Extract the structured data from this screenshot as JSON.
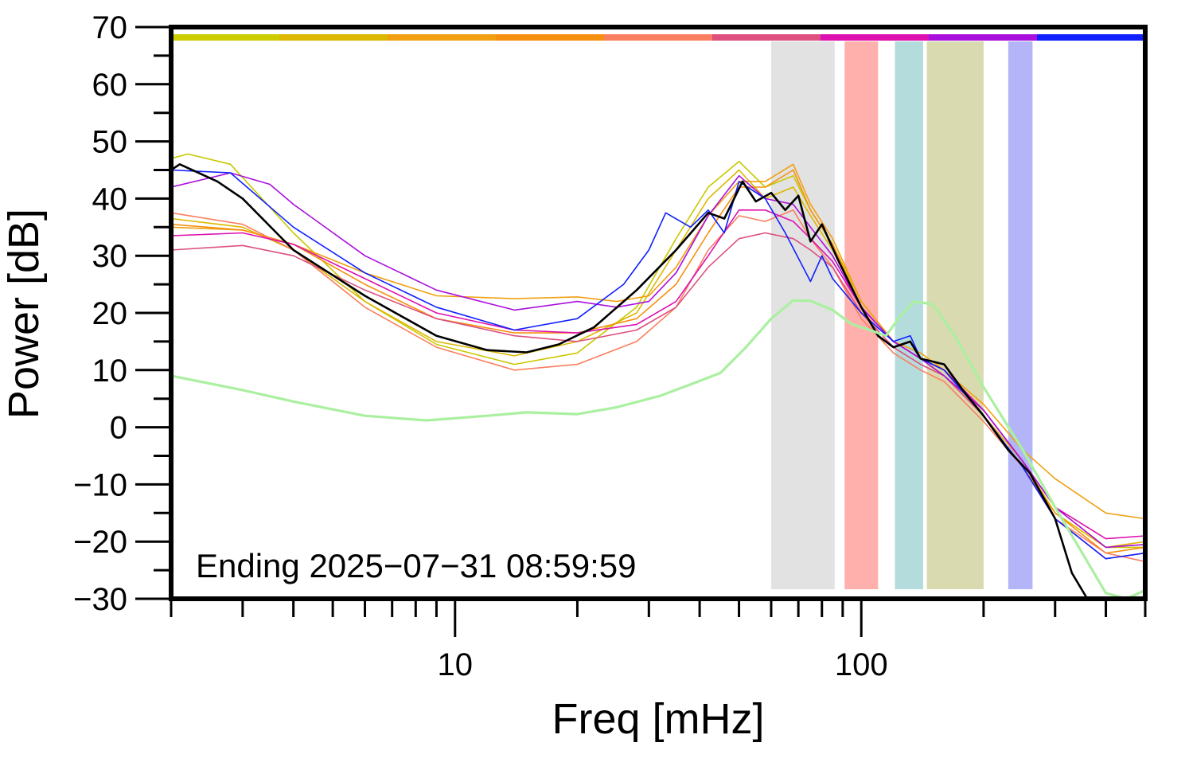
{
  "chart_data": {
    "type": "line",
    "xlabel": "Freq [mHz]",
    "ylabel": "Power [dB]",
    "xscale": "log",
    "xlim": [
      2,
      500
    ],
    "ylim": [
      -30,
      70
    ],
    "yticks": [
      70,
      60,
      50,
      40,
      30,
      20,
      10,
      0,
      -10,
      -20,
      -30
    ],
    "ytick_labels": [
      "70",
      "60",
      "50",
      "40",
      "30",
      "20",
      "10",
      "0",
      "−10",
      "−20",
      "−30"
    ],
    "xticks": [
      10,
      100
    ],
    "xtick_labels": [
      "10",
      "100"
    ],
    "annotation": "Ending 2025−07−31 08:59:59",
    "grid": false,
    "top_color_bar": [
      "#cccc00",
      "#ddb800",
      "#f0a010",
      "#f59010",
      "#fa7f60",
      "#dd5080",
      "#dd10b0",
      "#aa10dd",
      "#1020ff"
    ],
    "bands": [
      {
        "x0": 60,
        "x1": 86,
        "color": "#e2e2e2"
      },
      {
        "x0": 91,
        "x1": 110,
        "color": "#ffb0ac"
      },
      {
        "x0": 121,
        "x1": 142,
        "color": "#b4dcdc"
      },
      {
        "x0": 145,
        "x1": 200,
        "color": "#dadab0"
      },
      {
        "x0": 230,
        "x1": 264,
        "color": "#b4b4f8"
      }
    ],
    "series": [
      {
        "color": "#c8c800",
        "width": 1.6,
        "points": [
          [
            2,
            47
          ],
          [
            2.2,
            47.8
          ],
          [
            2.8,
            46
          ],
          [
            4,
            34
          ],
          [
            6,
            22
          ],
          [
            9,
            14.5
          ],
          [
            14,
            11
          ],
          [
            20,
            13
          ],
          [
            28,
            21
          ],
          [
            35,
            33
          ],
          [
            42,
            42
          ],
          [
            50,
            46.5
          ],
          [
            58,
            42
          ],
          [
            68,
            44
          ],
          [
            75,
            38
          ],
          [
            85,
            32
          ],
          [
            100,
            22
          ],
          [
            120,
            15
          ],
          [
            140,
            12
          ],
          [
            160,
            10
          ],
          [
            200,
            3
          ],
          [
            250,
            -6
          ],
          [
            300,
            -14
          ],
          [
            400,
            -21
          ],
          [
            500,
            -21
          ]
        ]
      },
      {
        "color": "#ddb800",
        "width": 1.6,
        "points": [
          [
            2,
            36.5
          ],
          [
            3,
            35
          ],
          [
            4,
            31
          ],
          [
            6,
            22
          ],
          [
            9,
            15
          ],
          [
            14,
            12.5
          ],
          [
            20,
            15
          ],
          [
            28,
            20
          ],
          [
            35,
            31
          ],
          [
            42,
            40
          ],
          [
            50,
            45
          ],
          [
            58,
            40
          ],
          [
            68,
            42
          ],
          [
            75,
            37
          ],
          [
            85,
            31
          ],
          [
            100,
            21
          ],
          [
            120,
            15
          ],
          [
            140,
            12
          ],
          [
            160,
            10
          ],
          [
            200,
            2
          ],
          [
            250,
            -6
          ],
          [
            300,
            -15
          ],
          [
            400,
            -21
          ],
          [
            500,
            -20
          ]
        ]
      },
      {
        "color": "#f0a010",
        "width": 1.6,
        "points": [
          [
            2,
            35
          ],
          [
            3,
            34.5
          ],
          [
            4,
            32
          ],
          [
            6,
            27
          ],
          [
            9,
            23
          ],
          [
            14,
            22.5
          ],
          [
            20,
            22.8
          ],
          [
            25,
            22
          ],
          [
            30,
            23
          ],
          [
            35,
            28
          ],
          [
            42,
            37
          ],
          [
            50,
            43
          ],
          [
            58,
            43
          ],
          [
            68,
            46
          ],
          [
            75,
            39
          ],
          [
            85,
            33
          ],
          [
            100,
            22
          ],
          [
            120,
            15
          ],
          [
            140,
            13
          ],
          [
            160,
            10
          ],
          [
            200,
            4
          ],
          [
            250,
            -4
          ],
          [
            300,
            -9
          ],
          [
            400,
            -15
          ],
          [
            500,
            -16
          ]
        ]
      },
      {
        "color": "#f59010",
        "width": 1.6,
        "points": [
          [
            2,
            35.5
          ],
          [
            3,
            34.5
          ],
          [
            4,
            32
          ],
          [
            6,
            25
          ],
          [
            9,
            19
          ],
          [
            14,
            16.5
          ],
          [
            20,
            16.5
          ],
          [
            28,
            19
          ],
          [
            35,
            25
          ],
          [
            42,
            34
          ],
          [
            50,
            42
          ],
          [
            58,
            42
          ],
          [
            68,
            45
          ],
          [
            75,
            38
          ],
          [
            85,
            32
          ],
          [
            100,
            21
          ],
          [
            120,
            15
          ],
          [
            140,
            12
          ],
          [
            160,
            9
          ],
          [
            200,
            2
          ],
          [
            250,
            -7
          ],
          [
            300,
            -15
          ],
          [
            400,
            -22
          ],
          [
            500,
            -21
          ]
        ]
      },
      {
        "color": "#fa7f60",
        "width": 1.6,
        "points": [
          [
            2,
            37.5
          ],
          [
            3,
            35.5
          ],
          [
            4,
            31
          ],
          [
            6,
            21
          ],
          [
            9,
            14
          ],
          [
            14,
            10
          ],
          [
            20,
            11
          ],
          [
            28,
            15
          ],
          [
            35,
            21
          ],
          [
            42,
            31
          ],
          [
            50,
            37
          ],
          [
            58,
            36
          ],
          [
            68,
            38
          ],
          [
            75,
            33
          ],
          [
            85,
            28
          ],
          [
            100,
            19
          ],
          [
            120,
            13
          ],
          [
            140,
            10
          ],
          [
            160,
            8
          ],
          [
            200,
            1
          ],
          [
            250,
            -7
          ],
          [
            300,
            -16
          ],
          [
            400,
            -22
          ],
          [
            500,
            -23.5
          ]
        ]
      },
      {
        "color": "#dd5080",
        "width": 1.6,
        "points": [
          [
            2,
            31
          ],
          [
            3,
            31.8
          ],
          [
            4,
            30
          ],
          [
            6,
            24
          ],
          [
            9,
            19
          ],
          [
            14,
            16
          ],
          [
            20,
            15
          ],
          [
            28,
            17
          ],
          [
            35,
            21
          ],
          [
            42,
            28
          ],
          [
            50,
            33
          ],
          [
            58,
            34
          ],
          [
            68,
            33
          ],
          [
            75,
            31
          ],
          [
            85,
            28
          ],
          [
            100,
            20
          ],
          [
            120,
            14
          ],
          [
            140,
            11
          ],
          [
            160,
            9
          ],
          [
            200,
            2
          ],
          [
            250,
            -7
          ],
          [
            300,
            -16
          ],
          [
            400,
            -23
          ],
          [
            500,
            -22
          ]
        ]
      },
      {
        "color": "#dd10b0",
        "width": 1.6,
        "points": [
          [
            2,
            33.5
          ],
          [
            3,
            34
          ],
          [
            4,
            32
          ],
          [
            6,
            26
          ],
          [
            9,
            20
          ],
          [
            14,
            17
          ],
          [
            20,
            16.5
          ],
          [
            28,
            18
          ],
          [
            35,
            22
          ],
          [
            42,
            30
          ],
          [
            50,
            38
          ],
          [
            58,
            38
          ],
          [
            68,
            36
          ],
          [
            75,
            33
          ],
          [
            85,
            29
          ],
          [
            100,
            21
          ],
          [
            120,
            15
          ],
          [
            140,
            12
          ],
          [
            160,
            10
          ],
          [
            200,
            3
          ],
          [
            250,
            -6
          ],
          [
            300,
            -14
          ],
          [
            400,
            -19.5
          ],
          [
            500,
            -19
          ]
        ]
      },
      {
        "color": "#aa10dd",
        "width": 1.6,
        "points": [
          [
            2,
            42
          ],
          [
            2.8,
            44.5
          ],
          [
            3.5,
            42.5
          ],
          [
            4,
            39
          ],
          [
            6,
            30
          ],
          [
            9,
            24
          ],
          [
            14,
            20.5
          ],
          [
            20,
            22
          ],
          [
            25,
            21
          ],
          [
            30,
            22
          ],
          [
            35,
            27
          ],
          [
            42,
            37
          ],
          [
            50,
            44
          ],
          [
            58,
            40
          ],
          [
            68,
            39
          ],
          [
            75,
            35
          ],
          [
            85,
            30
          ],
          [
            100,
            21
          ],
          [
            120,
            15
          ],
          [
            140,
            12
          ],
          [
            160,
            9
          ],
          [
            200,
            3
          ],
          [
            250,
            -6
          ],
          [
            300,
            -14
          ],
          [
            400,
            -21
          ],
          [
            500,
            -20.5
          ]
        ]
      },
      {
        "color": "#1020ff",
        "width": 1.6,
        "points": [
          [
            2,
            45
          ],
          [
            2.8,
            44.5
          ],
          [
            4,
            35
          ],
          [
            6,
            27
          ],
          [
            9,
            21
          ],
          [
            14,
            17
          ],
          [
            20,
            19
          ],
          [
            26,
            25
          ],
          [
            30,
            31
          ],
          [
            33,
            37.5
          ],
          [
            38,
            35
          ],
          [
            42,
            38
          ],
          [
            46,
            34
          ],
          [
            50,
            43
          ],
          [
            58,
            40
          ],
          [
            65,
            34
          ],
          [
            75,
            25.5
          ],
          [
            80,
            30
          ],
          [
            85,
            26
          ],
          [
            100,
            20
          ],
          [
            120,
            15
          ],
          [
            132,
            16
          ],
          [
            140,
            12
          ],
          [
            160,
            10
          ],
          [
            200,
            2
          ],
          [
            250,
            -7
          ],
          [
            300,
            -16
          ],
          [
            400,
            -23
          ],
          [
            500,
            -22
          ]
        ]
      },
      {
        "color": "#000000",
        "width": 2.6,
        "points": [
          [
            2,
            45
          ],
          [
            2.1,
            46
          ],
          [
            2.6,
            43
          ],
          [
            3,
            40
          ],
          [
            4,
            31
          ],
          [
            6,
            23
          ],
          [
            9,
            16
          ],
          [
            12,
            13.5
          ],
          [
            15,
            13.1
          ],
          [
            18,
            14.5
          ],
          [
            22,
            17.5
          ],
          [
            28,
            24
          ],
          [
            35,
            31
          ],
          [
            42,
            37.5
          ],
          [
            46,
            36.5
          ],
          [
            51,
            43
          ],
          [
            55,
            39.5
          ],
          [
            60,
            41
          ],
          [
            65,
            38
          ],
          [
            70,
            40.5
          ],
          [
            75,
            32.5
          ],
          [
            80,
            35.5
          ],
          [
            88,
            29
          ],
          [
            100,
            21
          ],
          [
            110,
            16
          ],
          [
            120,
            14
          ],
          [
            132,
            15
          ],
          [
            140,
            12
          ],
          [
            160,
            11
          ],
          [
            180,
            6
          ],
          [
            200,
            2
          ],
          [
            230,
            -4
          ],
          [
            260,
            -8
          ],
          [
            300,
            -16
          ],
          [
            330,
            -25.5
          ],
          [
            360,
            -30
          ],
          [
            380,
            -32
          ]
        ]
      },
      {
        "color": "#aaf0a0",
        "width": 3.2,
        "points": [
          [
            2,
            9
          ],
          [
            3,
            6.5
          ],
          [
            4,
            4.5
          ],
          [
            6,
            2
          ],
          [
            8.5,
            1.2
          ],
          [
            12,
            2
          ],
          [
            15,
            2.6
          ],
          [
            20,
            2.3
          ],
          [
            25,
            3.5
          ],
          [
            32,
            5.5
          ],
          [
            38,
            7.5
          ],
          [
            45,
            9.5
          ],
          [
            52,
            14
          ],
          [
            60,
            19
          ],
          [
            68,
            22.2
          ],
          [
            75,
            22.1
          ],
          [
            85,
            20.5
          ],
          [
            95,
            18
          ],
          [
            105,
            17
          ],
          [
            115,
            16
          ],
          [
            125,
            19.5
          ],
          [
            135,
            22
          ],
          [
            150,
            21.5
          ],
          [
            170,
            16
          ],
          [
            200,
            7
          ],
          [
            250,
            -4
          ],
          [
            300,
            -14
          ],
          [
            350,
            -22
          ],
          [
            400,
            -29
          ],
          [
            450,
            -30
          ],
          [
            500,
            -28.5
          ]
        ]
      }
    ]
  }
}
